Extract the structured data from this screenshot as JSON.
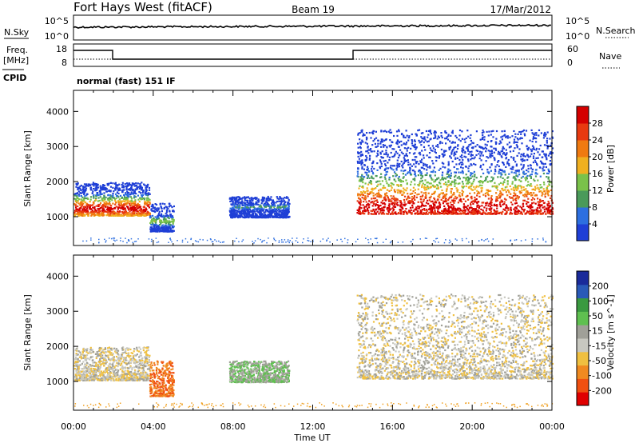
{
  "header": {
    "station": "Fort Hays West (fitACF)",
    "beam": "Beam 19",
    "date": "17/Mar/2012"
  },
  "noise_panel": {
    "left_label": "N.Sky",
    "right_label": "N.Search",
    "ticks": [
      "10^5",
      "10^0"
    ]
  },
  "freq_panel": {
    "left_label_line1": "Freq.",
    "left_label_line2": "[MHz]",
    "left_ticks": [
      "18",
      "8"
    ],
    "right_ticks": [
      "60",
      "0"
    ],
    "right_label": "Nave"
  },
  "cpid": {
    "label": "CPID",
    "value": "normal (fast) 151 IF"
  },
  "colors": {
    "power": [
      "#1f3fd6",
      "#2d6fe0",
      "#4a9a5a",
      "#7ac24a",
      "#f0b020",
      "#f07a10",
      "#e83a10",
      "#d40000"
    ],
    "velocity": [
      "#e00000",
      "#f05010",
      "#f08a20",
      "#f0c040",
      "#c8c8c0",
      "#a0a098",
      "#5fc050",
      "#3a9a40",
      "#2a5ab8",
      "#1a2a9a"
    ],
    "ground_scatter": "#c8c8c0"
  },
  "chart_data": [
    {
      "type": "heatmap",
      "title": "",
      "ylabel": "Slant Range [km]",
      "xlabel": "",
      "x_ticks": [
        "00:00",
        "04:00",
        "08:00",
        "12:00",
        "16:00",
        "20:00",
        "00:00"
      ],
      "xlim_hours": [
        0,
        24
      ],
      "y_ticks": [
        1000,
        2000,
        3000,
        4000
      ],
      "ylim": [
        180,
        4600
      ],
      "colorbar": {
        "label": "Power [dB]",
        "ticks": [
          4,
          8,
          12,
          16,
          20,
          24,
          28
        ],
        "range": [
          0,
          30
        ]
      },
      "features": [
        {
          "hours": [
            0,
            3.8
          ],
          "range_km": [
            1050,
            2000
          ],
          "peak_range_km": 1250,
          "peak_db": 30
        },
        {
          "hours": [
            3.8,
            5.0
          ],
          "range_km": [
            600,
            1400
          ],
          "peak_range_km": 900,
          "peak_db": 14
        },
        {
          "hours": [
            7.8,
            10.8
          ],
          "range_km": [
            1000,
            1600
          ],
          "peak_range_km": 1300,
          "peak_db": 10
        },
        {
          "hours": [
            14.2,
            24
          ],
          "range_km": [
            1100,
            3500
          ],
          "peak_range_km": 1300,
          "peak_db": 30
        }
      ]
    },
    {
      "type": "heatmap",
      "title": "",
      "ylabel": "Slant Range [km]",
      "xlabel": "Time UT",
      "x_ticks": [
        "00:00",
        "04:00",
        "08:00",
        "12:00",
        "16:00",
        "20:00",
        "00:00"
      ],
      "xlim_hours": [
        0,
        24
      ],
      "y_ticks": [
        1000,
        2000,
        3000,
        4000
      ],
      "ylim": [
        180,
        4600
      ],
      "colorbar": {
        "label": "Velocity [m s^-1]",
        "ticks": [
          200,
          100,
          50,
          15,
          -15,
          -50,
          -100,
          -200
        ],
        "range": [
          -250,
          250
        ]
      },
      "features": [
        {
          "hours": [
            0,
            3.8
          ],
          "range_km": [
            1050,
            2000
          ],
          "dominant_velocity_ms": 0,
          "note": "ground scatter"
        },
        {
          "hours": [
            3.8,
            5.0
          ],
          "range_km": [
            600,
            1600
          ],
          "dominant_velocity_ms": -100
        },
        {
          "hours": [
            7.8,
            10.8
          ],
          "range_km": [
            1000,
            1600
          ],
          "dominant_velocity_ms": 50
        },
        {
          "hours": [
            14.2,
            24
          ],
          "range_km": [
            1100,
            3500
          ],
          "dominant_velocity_ms": 0,
          "note": "ground scatter"
        }
      ]
    }
  ]
}
